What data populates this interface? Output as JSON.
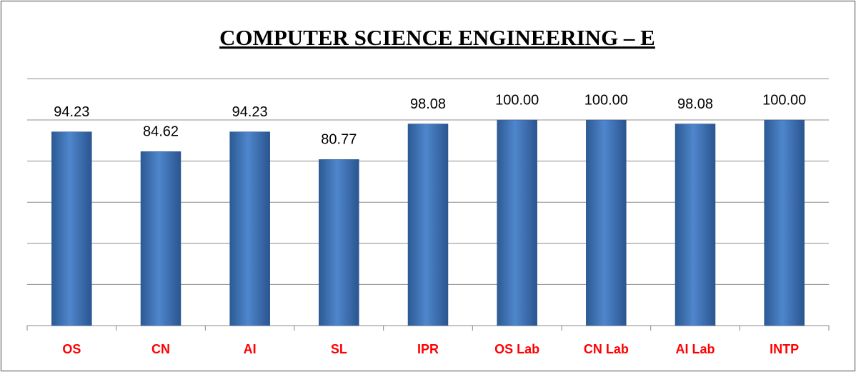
{
  "chart_data": {
    "type": "bar",
    "title": "COMPUTER SCIENCE ENGINEERING – E",
    "categories": [
      "OS",
      "CN",
      "AI",
      "SL",
      "IPR",
      "OS Lab",
      "CN Lab",
      "AI Lab",
      "INTP"
    ],
    "values": [
      94.23,
      84.62,
      94.23,
      80.77,
      98.08,
      100,
      100,
      98.08,
      100
    ],
    "value_labels": [
      "94.23",
      "84.62",
      "94.23",
      "80.77",
      "98.08",
      "100.00",
      "100.00",
      "98.08",
      "100.00"
    ],
    "color": "#4f81bd",
    "ylim": [
      0,
      120
    ],
    "yticks": [
      0,
      20,
      40,
      60,
      80,
      100,
      120
    ],
    "grid": true
  }
}
